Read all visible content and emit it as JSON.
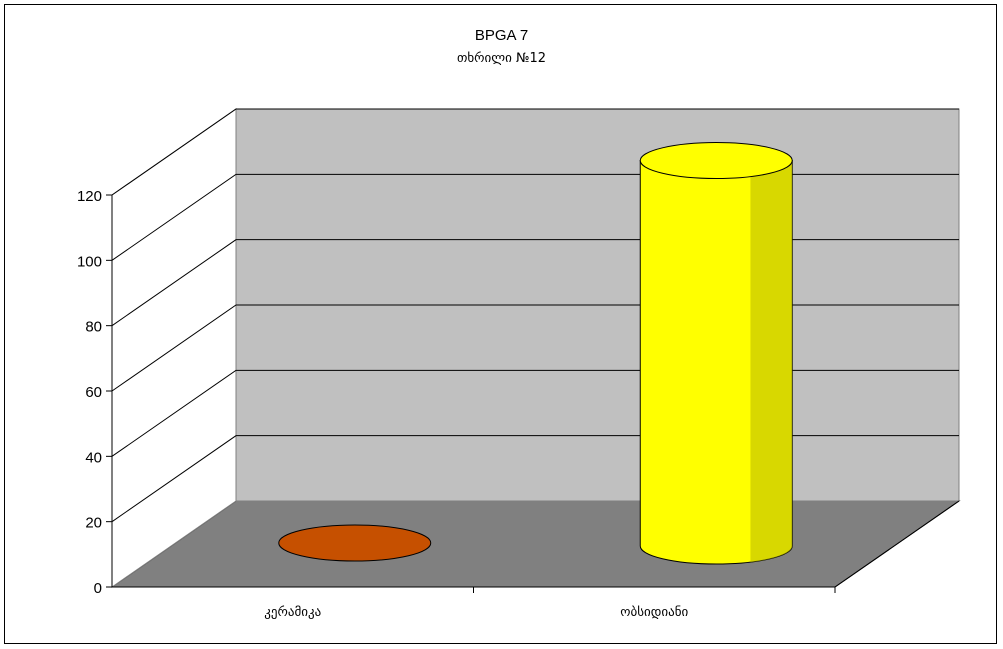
{
  "chart_data": {
    "type": "bar",
    "title": "BPGA 7",
    "subtitle": "თხრილი №12",
    "categories": [
      "კერამიკა",
      "ობსიდიანი"
    ],
    "series": [
      {
        "values": [
          1,
          118
        ],
        "colors": [
          "#c65000",
          "#ffff00"
        ]
      }
    ],
    "ylim": [
      0,
      120
    ],
    "yticks": [
      0,
      20,
      40,
      60,
      80,
      100,
      120
    ],
    "grid": true,
    "style": "3d-cylinder",
    "wall_color": "#c0c0c0",
    "floor_color": "#808080"
  }
}
